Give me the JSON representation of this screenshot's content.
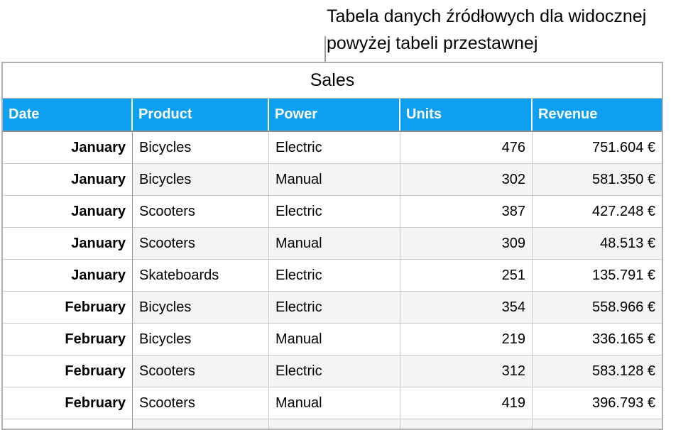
{
  "caption": {
    "line1": "Tabela danych źródłowych dla widocznej",
    "line2": "powyżej tabeli przestawnej"
  },
  "table": {
    "title": "Sales",
    "columns": [
      "Date",
      "Product",
      "Power",
      "Units",
      "Revenue"
    ],
    "rows": [
      {
        "date": "January",
        "product": "Bicycles",
        "power": "Electric",
        "units": "476",
        "revenue": "751.604 €"
      },
      {
        "date": "January",
        "product": "Bicycles",
        "power": "Manual",
        "units": "302",
        "revenue": "581.350 €"
      },
      {
        "date": "January",
        "product": "Scooters",
        "power": "Electric",
        "units": "387",
        "revenue": "427.248 €"
      },
      {
        "date": "January",
        "product": "Scooters",
        "power": "Manual",
        "units": "309",
        "revenue": "48.513 €"
      },
      {
        "date": "January",
        "product": "Skateboards",
        "power": "Electric",
        "units": "251",
        "revenue": "135.791 €"
      },
      {
        "date": "February",
        "product": "Bicycles",
        "power": "Electric",
        "units": "354",
        "revenue": "558.966 €"
      },
      {
        "date": "February",
        "product": "Bicycles",
        "power": "Manual",
        "units": "219",
        "revenue": "336.165 €"
      },
      {
        "date": "February",
        "product": "Scooters",
        "power": "Electric",
        "units": "312",
        "revenue": "583.128 €"
      },
      {
        "date": "February",
        "product": "Scooters",
        "power": "Manual",
        "units": "419",
        "revenue": "396.793 €"
      }
    ]
  },
  "colors": {
    "header_bg": "#0d9ff2",
    "header_text": "#ffffff",
    "alt_row_bg": "#f4f4f2",
    "grid_line": "#c9c9c9",
    "callout_line": "#9a9a9a"
  }
}
